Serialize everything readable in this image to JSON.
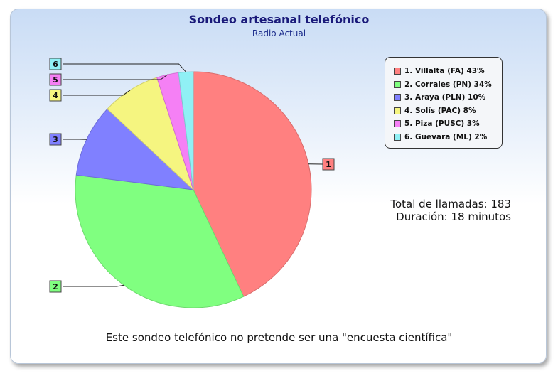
{
  "chart_data": {
    "type": "pie",
    "title": "Sondeo artesanal telefónico",
    "subtitle": "Radio Actual",
    "categories": [
      "1. Villalta (FA)",
      "2. Corrales (PN)",
      "3. Araya (PLN)",
      "4. Solís (PAC)",
      "5. Piza (PUSC)",
      "6. Guevara (ML)"
    ],
    "labels": [
      "1",
      "2",
      "3",
      "4",
      "5",
      "6"
    ],
    "legend_text": [
      "1. Villalta (FA) 43%",
      "2. Corrales (PN) 34%",
      "3. Araya (PLN) 10%",
      "4. Solís (PAC) 8%",
      "5. Piza (PUSC) 3%",
      "6. Guevara (ML) 2%"
    ],
    "values": [
      43,
      34,
      10,
      8,
      3,
      2
    ],
    "colors": [
      "#ff8080",
      "#80ff80",
      "#8080ff",
      "#f5f580",
      "#f580f5",
      "#90f0f5"
    ],
    "legend_placement": "right"
  },
  "summary": {
    "total": "Total de llamadas: 183",
    "duration": "Duración: 18 minutos"
  },
  "footer": "Este sondeo telefónico no pretende ser una \"encuesta científica\""
}
